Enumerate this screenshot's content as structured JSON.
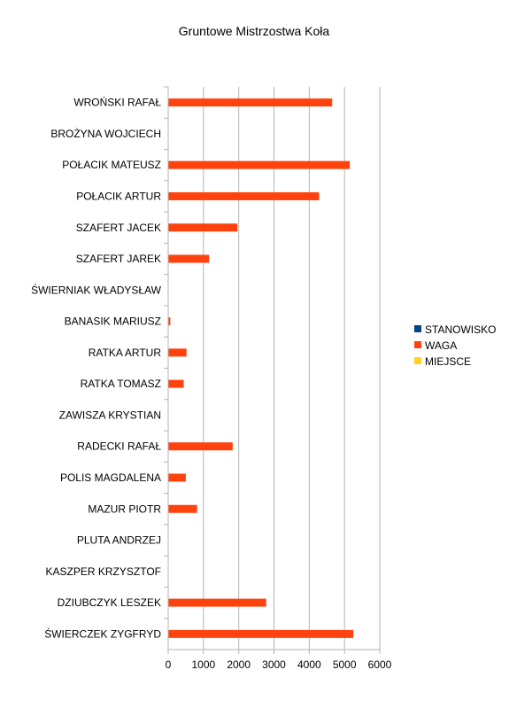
{
  "chart_data": {
    "type": "bar",
    "orientation": "horizontal",
    "title": "Gruntowe Mistrzostwa Koła",
    "categories": [
      "WROŃSKI RAFAŁ",
      "BROŻYNA WOJCIECH",
      "POŁACIK MATEUSZ",
      "POŁACIK ARTUR",
      "SZAFERT JACEK",
      "SZAFERT JAREK",
      "ŚWIERNIAK WŁADYSŁAW",
      "BANASIK MARIUSZ",
      "RATKA ARTUR",
      "RATKA TOMASZ",
      "ZAWISZA KRYSTIAN",
      "RADECKI RAFAŁ",
      "POLIS MAGDALENA",
      "MAZUR PIOTR",
      "PLUTA ANDRZEJ",
      "KASZPER KRZYSZTOF",
      "DZIUBCZYK LESZEK",
      "ŚWIERCZEK ZYGFRYD"
    ],
    "series": [
      {
        "name": "STANOWISKO",
        "color": "#004586",
        "values": [
          0,
          0,
          0,
          0,
          0,
          0,
          0,
          0,
          0,
          0,
          0,
          0,
          0,
          0,
          0,
          0,
          0,
          0
        ]
      },
      {
        "name": "WAGA",
        "color": "#ff420e",
        "values": [
          4650,
          0,
          5150,
          4280,
          1960,
          1160,
          0,
          60,
          520,
          440,
          0,
          1830,
          500,
          820,
          0,
          0,
          2780,
          5250
        ]
      },
      {
        "name": "MIEJSCE",
        "color": "#ffd320",
        "values": [
          0,
          0,
          0,
          0,
          0,
          0,
          0,
          0,
          0,
          0,
          0,
          0,
          0,
          0,
          0,
          0,
          0,
          0
        ]
      }
    ],
    "xlim": [
      0,
      6000
    ],
    "xticks": [
      0,
      1000,
      2000,
      3000,
      4000,
      5000,
      6000
    ],
    "grid": "vertical",
    "legend": "right"
  }
}
